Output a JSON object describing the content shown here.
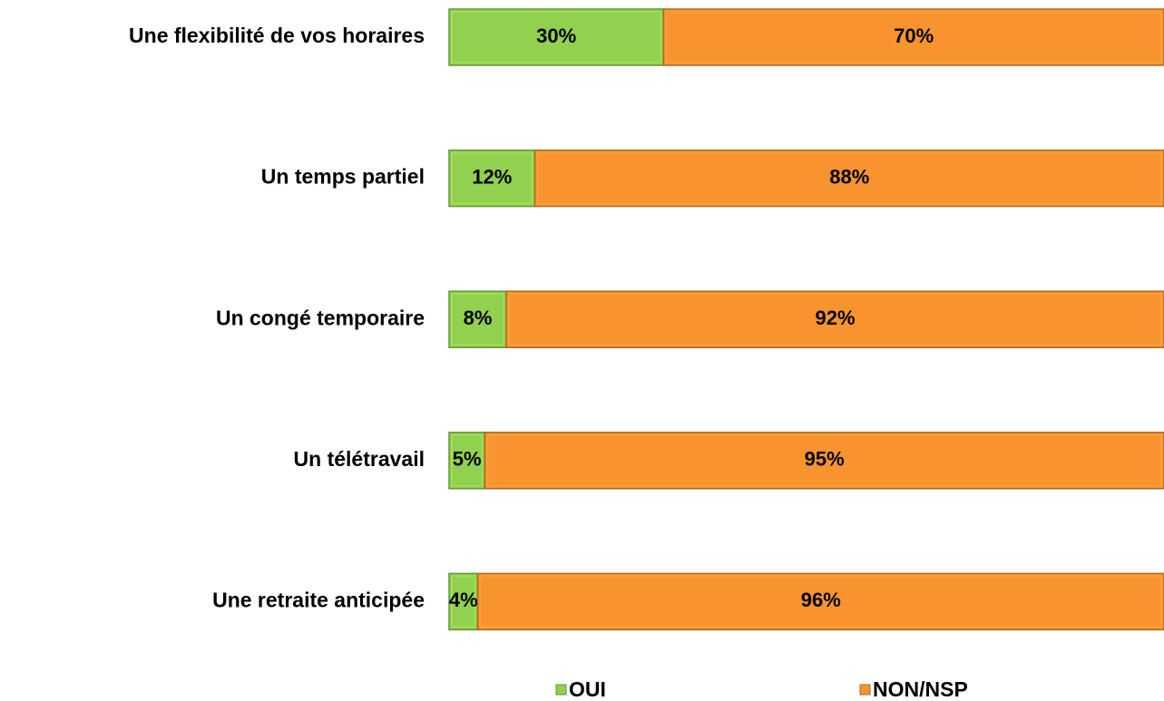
{
  "chart_data": {
    "type": "stacked_bar_horizontal",
    "categories": [
      "Une flexibilité de vos horaires",
      "Un temps partiel",
      "Un congé temporaire",
      "Un télétravail",
      "Une retraite anticipée"
    ],
    "xlim": [
      0,
      100
    ],
    "legend": "bottom",
    "series": [
      {
        "name": "OUI",
        "color": "#92d050",
        "values": [
          30,
          12,
          8,
          5,
          4
        ],
        "value_labels": [
          "30%",
          "12%",
          "8%",
          "5%",
          "4%"
        ]
      },
      {
        "name": "NON/NSP",
        "color": "#f79430",
        "values": [
          70,
          88,
          92,
          95,
          96
        ],
        "value_labels": [
          "70%",
          "88%",
          "92%",
          "95%",
          "96%"
        ]
      }
    ]
  }
}
